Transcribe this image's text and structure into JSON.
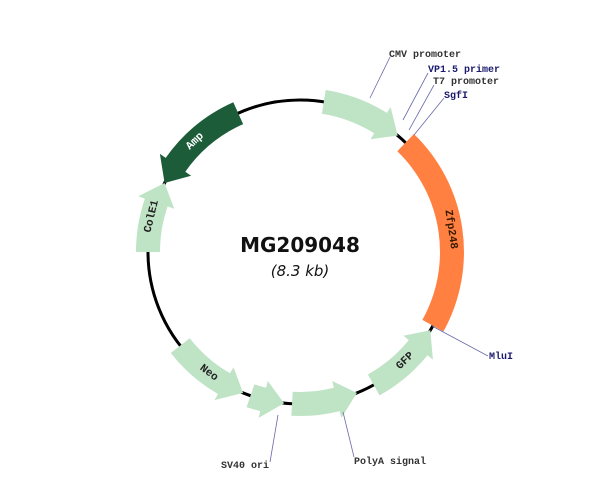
{
  "plasmid": {
    "name": "MG209048",
    "size": "(8.3 kb)"
  },
  "colors": {
    "backbone": "#000000",
    "light_feature": "#bfe3c5",
    "insert": "#ff8040",
    "amp": "#1c5c38",
    "site_label": "#1a1a6e",
    "leader_line": "#6a6aa8"
  },
  "features": [
    {
      "name": "CMV promoter",
      "label": "",
      "color": "#bfe3c5",
      "text_color": "#000000"
    },
    {
      "name": "Zfp248",
      "label": "Zfp248",
      "color": "#ff8040",
      "text_color": "#3a1a00"
    },
    {
      "name": "GFP",
      "label": "GFP",
      "color": "#bfe3c5",
      "text_color": "#222222"
    },
    {
      "name": "PolyA signal",
      "label": "",
      "color": "#bfe3c5",
      "text_color": "#222222"
    },
    {
      "name": "SV40 ori",
      "label": "",
      "color": "#bfe3c5",
      "text_color": "#222222"
    },
    {
      "name": "Neo",
      "label": "Neo",
      "color": "#bfe3c5",
      "text_color": "#222222"
    },
    {
      "name": "ColE1",
      "label": "ColE1",
      "color": "#bfe3c5",
      "text_color": "#222222"
    },
    {
      "name": "Amp",
      "label": "Amp",
      "color": "#1c5c38",
      "text_color": "#ffffff"
    }
  ],
  "site_labels": [
    {
      "text": "CMV promoter",
      "color": "#333333"
    },
    {
      "text": "VP1.5 primer",
      "color": "#1a1a6e"
    },
    {
      "text": "T7 promoter",
      "color": "#333333"
    },
    {
      "text": "SgfI",
      "color": "#1a1a6e"
    },
    {
      "text": "MluI",
      "color": "#1a1a6e"
    },
    {
      "text": "PolyA signal",
      "color": "#333333"
    },
    {
      "text": "SV40 ori",
      "color": "#333333"
    }
  ]
}
